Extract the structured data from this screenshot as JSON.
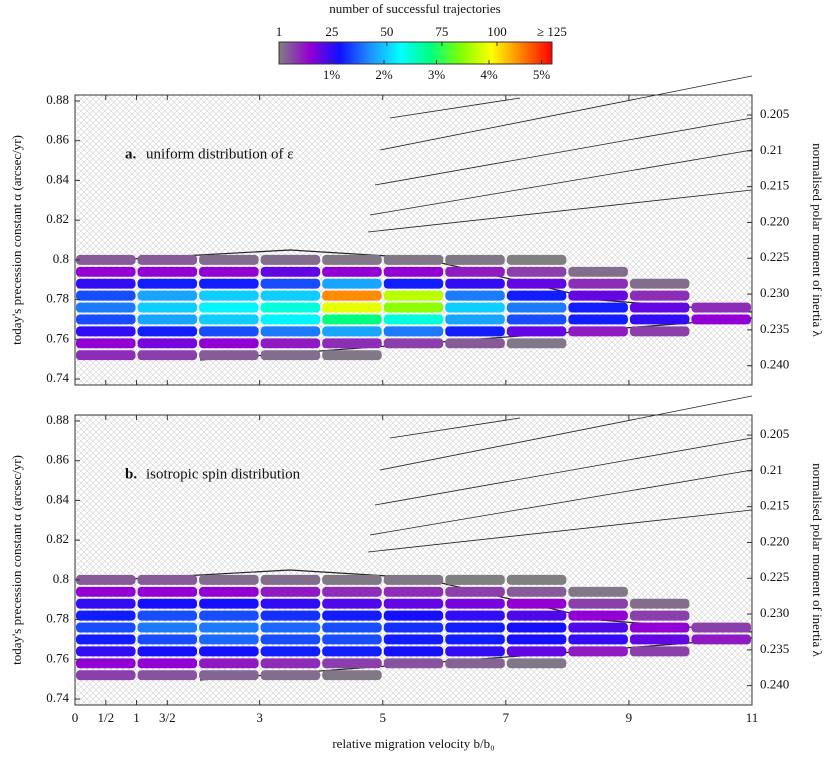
{
  "colorbar": {
    "title": "number of successful trajectories",
    "clim": [
      1,
      125
    ],
    "ticks": [
      1,
      25,
      50,
      75,
      100,
      {
        "value": 125,
        "label": "≥ 125"
      }
    ],
    "plim": [
      0,
      5.2
    ],
    "percent_ticks": [
      {
        "value": 1,
        "label": "1%"
      },
      {
        "value": 2,
        "label": "2%"
      },
      {
        "value": 3,
        "label": "3%"
      },
      {
        "value": 4,
        "label": "4%"
      },
      {
        "value": 5,
        "label": "5%"
      }
    ],
    "colormap": [
      "#808080",
      "#9400d3",
      "#1010ff",
      "#1e90ff",
      "#00ffff",
      "#00ff80",
      "#80ff00",
      "#ffff00",
      "#ff8000",
      "#ff0000"
    ]
  },
  "chart_data": [
    {
      "type": "heatmap",
      "annotation_label": "a.",
      "annotation": "uniform distribution of ε",
      "ylabel": "today's precession constant α (arcsec/yr)",
      "y2label": "normalised polar moment of inertia λ",
      "x": [
        0.5,
        1.5,
        2.5,
        3.5,
        4.5,
        5.5,
        6.5,
        7.5,
        8.5,
        9.5,
        10.5
      ],
      "y": [
        0.752,
        0.758,
        0.764,
        0.77,
        0.776,
        0.782,
        0.788,
        0.794,
        0.8
      ],
      "values": [
        [
          10,
          8,
          5,
          3,
          2,
          null,
          null,
          null,
          null,
          null,
          null
        ],
        [
          15,
          18,
          15,
          12,
          10,
          8,
          5,
          2,
          null,
          null,
          null
        ],
        [
          25,
          30,
          35,
          40,
          45,
          40,
          30,
          20,
          12,
          8,
          null
        ],
        [
          35,
          45,
          50,
          55,
          70,
          60,
          45,
          35,
          30,
          25,
          15
        ],
        [
          40,
          50,
          55,
          60,
          95,
          85,
          50,
          40,
          30,
          20,
          10
        ],
        [
          35,
          45,
          50,
          50,
          110,
          90,
          40,
          30,
          20,
          10,
          null
        ],
        [
          25,
          30,
          30,
          35,
          45,
          30,
          25,
          20,
          10,
          3,
          null
        ],
        [
          15,
          15,
          15,
          20,
          15,
          15,
          12,
          8,
          3,
          null,
          null
        ],
        [
          5,
          5,
          3,
          3,
          2,
          2,
          2,
          1,
          null,
          null,
          null
        ]
      ],
      "xlim": [
        0,
        11
      ],
      "ylim": [
        0.737,
        0.883
      ],
      "y2lim": [
        0.2427,
        0.2022
      ],
      "xticks": [
        0,
        {
          "value": 0.5,
          "label": "1/2"
        },
        1,
        {
          "value": 1.5,
          "label": "3/2"
        },
        3,
        5,
        7,
        9,
        11
      ],
      "yticks": [
        0.74,
        0.76,
        0.78,
        0.8,
        0.82,
        0.84,
        0.86,
        0.88
      ],
      "y2ticks": [
        0.205,
        0.21,
        0.215,
        {
          "value": 0.22,
          "label": "0.220"
        },
        0.225,
        {
          "value": 0.23,
          "label": "0.230"
        },
        0.235,
        {
          "value": 0.24,
          "label": "0.240"
        }
      ]
    },
    {
      "type": "heatmap",
      "annotation_label": "b.",
      "annotation": "isotropic spin distribution",
      "ylabel": "today's precession constant α (arcsec/yr)",
      "y2label": "normalised polar moment of inertia λ",
      "xlabel": "relative migration velocity b/b₀",
      "x": [
        0.5,
        1.5,
        2.5,
        3.5,
        4.5,
        5.5,
        6.5,
        7.5,
        8.5,
        9.5,
        10.5
      ],
      "y": [
        0.752,
        0.758,
        0.764,
        0.77,
        0.776,
        0.782,
        0.788,
        0.794,
        0.8
      ],
      "values": [
        [
          8,
          6,
          4,
          3,
          2,
          null,
          null,
          null,
          null,
          null,
          null
        ],
        [
          15,
          15,
          12,
          10,
          8,
          6,
          4,
          2,
          null,
          null,
          null
        ],
        [
          25,
          28,
          28,
          30,
          30,
          28,
          25,
          20,
          12,
          8,
          null
        ],
        [
          30,
          35,
          38,
          35,
          35,
          30,
          30,
          28,
          25,
          20,
          12
        ],
        [
          35,
          40,
          40,
          38,
          35,
          32,
          30,
          28,
          22,
          15,
          8
        ],
        [
          30,
          35,
          35,
          32,
          30,
          28,
          25,
          22,
          15,
          8,
          null
        ],
        [
          25,
          28,
          28,
          25,
          22,
          20,
          18,
          15,
          8,
          3,
          null
        ],
        [
          15,
          15,
          15,
          12,
          10,
          10,
          8,
          5,
          2,
          null,
          null
        ],
        [
          5,
          5,
          3,
          3,
          2,
          2,
          1,
          1,
          null,
          null,
          null
        ]
      ],
      "xlim": [
        0,
        11
      ],
      "ylim": [
        0.737,
        0.883
      ],
      "y2lim": [
        0.2427,
        0.2022
      ],
      "xticks": [
        0,
        {
          "value": 0.5,
          "label": "1/2"
        },
        1,
        {
          "value": 1.5,
          "label": "3/2"
        },
        3,
        5,
        7,
        9,
        11
      ],
      "yticks": [
        0.74,
        0.76,
        0.78,
        0.8,
        0.82,
        0.84,
        0.86,
        0.88
      ],
      "y2ticks": [
        0.205,
        0.21,
        0.215,
        {
          "value": 0.22,
          "label": "0.220"
        },
        0.225,
        {
          "value": 0.23,
          "label": "0.230"
        },
        0.235,
        {
          "value": 0.24,
          "label": "0.240"
        }
      ]
    }
  ]
}
